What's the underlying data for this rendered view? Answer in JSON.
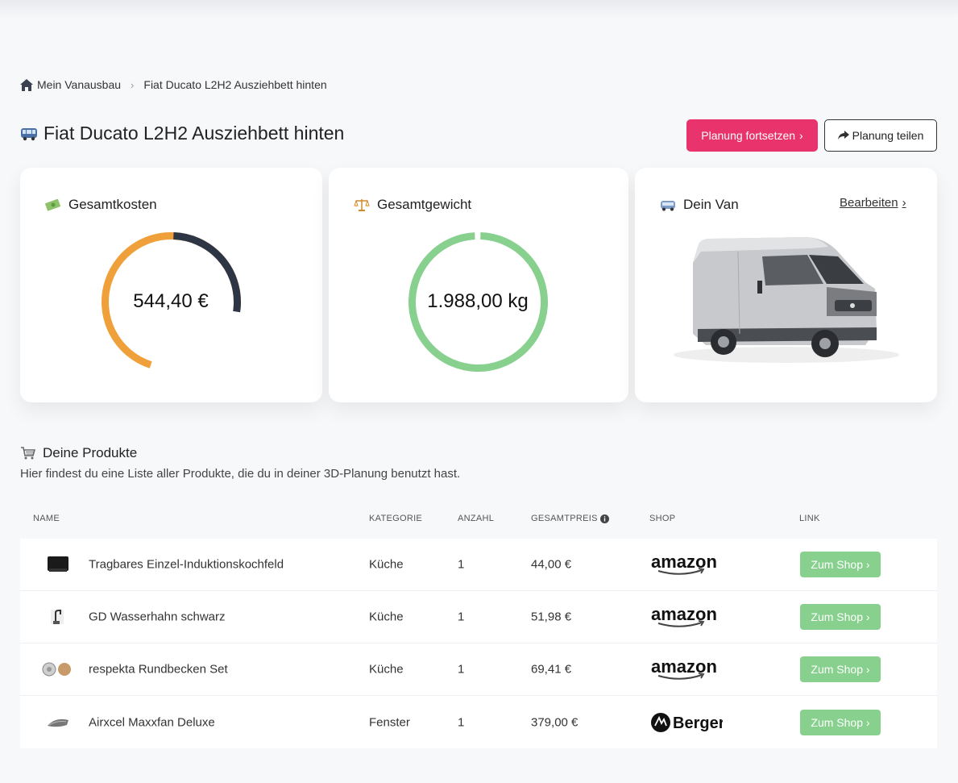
{
  "breadcrumb": {
    "home_icon": "home-icon",
    "root": "Mein Vanausbau",
    "current": "Fiat Ducato L2H2 Ausziehbett hinten"
  },
  "header": {
    "icon": "bus-icon",
    "title": "Fiat Ducato L2H2 Ausziehbett hinten",
    "continue_label": "Planung fortsetzen",
    "share_label": "Planung teilen"
  },
  "colors": {
    "primary": "#e8336d",
    "cost_segment_main": "#f0a03a",
    "cost_segment_other": "#2e3646",
    "weight_ring": "#87d08e",
    "shop_button": "#87d08e"
  },
  "cards": {
    "cost": {
      "icon": "money-icon",
      "title": "Gesamtkosten",
      "value": "544,40 €"
    },
    "weight": {
      "icon": "scale-icon",
      "title": "Gesamtgewicht",
      "value": "1.988,00 kg"
    },
    "van": {
      "icon": "van-icon",
      "title": "Dein Van",
      "edit_label": "Bearbeiten"
    }
  },
  "products": {
    "icon": "cart-icon",
    "title": "Deine Produkte",
    "subtitle": "Hier findest du eine Liste aller Produkte, die du in deiner 3D-Planung benutzt hast.",
    "columns": {
      "name": "NAME",
      "category": "KATEGORIE",
      "quantity": "ANZAHL",
      "total_price": "GESAMTPREIS",
      "shop": "SHOP",
      "link": "LINK"
    },
    "items": [
      {
        "name": "Tragbares Einzel-Induktionskochfeld",
        "category": "Küche",
        "quantity": "1",
        "price": "44,00 €",
        "shop": "amazon",
        "link_label": "Zum Shop"
      },
      {
        "name": "GD Wasserhahn schwarz",
        "category": "Küche",
        "quantity": "1",
        "price": "51,98 €",
        "shop": "amazon",
        "link_label": "Zum Shop"
      },
      {
        "name": "respekta Rundbecken Set",
        "category": "Küche",
        "quantity": "1",
        "price": "69,41 €",
        "shop": "amazon",
        "link_label": "Zum Shop"
      },
      {
        "name": "Airxcel Maxxfan Deluxe",
        "category": "Fenster",
        "quantity": "1",
        "price": "379,00 €",
        "shop": "Berger",
        "link_label": "Zum Shop"
      }
    ]
  }
}
